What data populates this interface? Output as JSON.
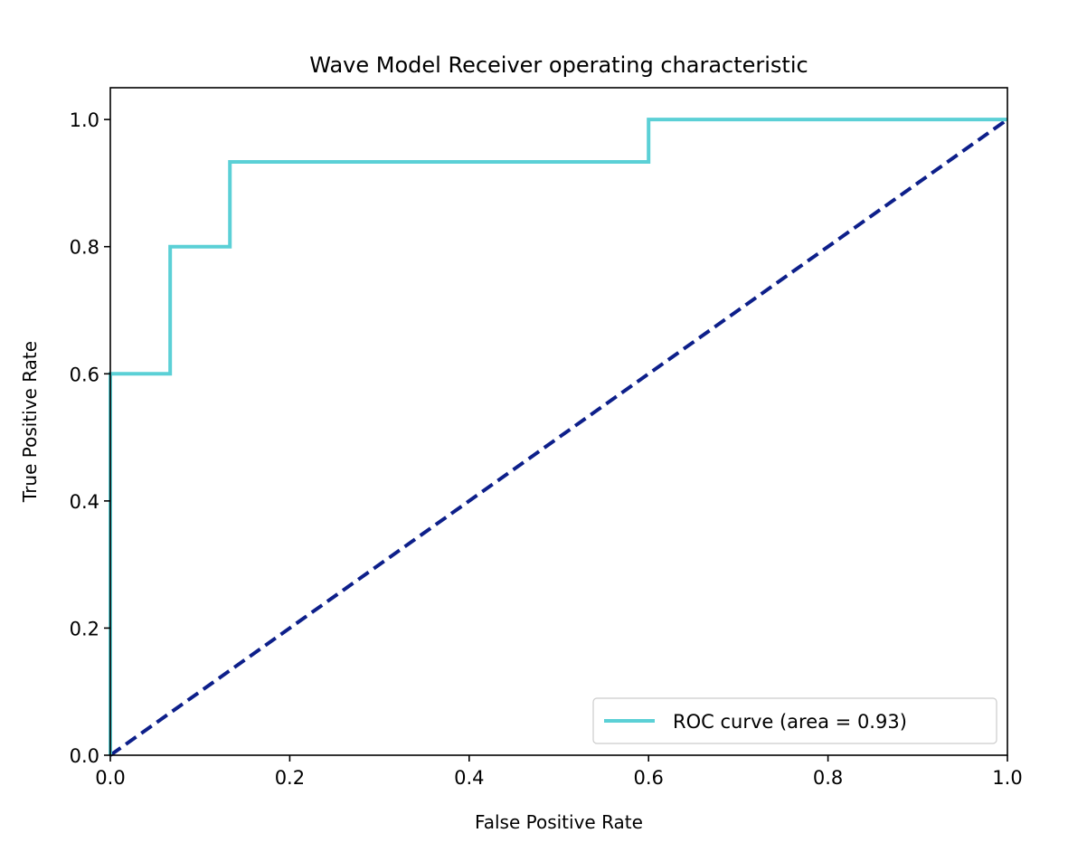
{
  "chart_data": {
    "type": "line",
    "title": "Wave Model Receiver operating characteristic",
    "xlabel": "False Positive Rate",
    "ylabel": "True Positive Rate",
    "xlim": [
      0.0,
      1.0
    ],
    "ylim": [
      0.0,
      1.05
    ],
    "xticks": [
      0.0,
      0.2,
      0.4,
      0.6,
      0.8,
      1.0
    ],
    "xtick_labels": [
      "0.0",
      "0.2",
      "0.4",
      "0.6",
      "0.8",
      "1.0"
    ],
    "yticks": [
      0.0,
      0.2,
      0.4,
      0.6,
      0.8,
      1.0
    ],
    "ytick_labels": [
      "0.0",
      "0.2",
      "0.4",
      "0.6",
      "0.8",
      "1.0"
    ],
    "grid": false,
    "legend_position": "lower-right",
    "series": [
      {
        "name": "ROC curve (area = 0.93)",
        "color": "#5bd0d6",
        "style": "solid",
        "x": [
          0.0,
          0.0,
          0.0667,
          0.0667,
          0.1333,
          0.1333,
          0.6,
          0.6,
          1.0
        ],
        "y": [
          0.0,
          0.6,
          0.6,
          0.8,
          0.8,
          0.9333,
          0.9333,
          1.0,
          1.0
        ]
      },
      {
        "color": "#0d1f8a",
        "style": "dashed",
        "x": [
          0.0,
          1.0
        ],
        "y": [
          0.0,
          1.0
        ]
      }
    ]
  }
}
